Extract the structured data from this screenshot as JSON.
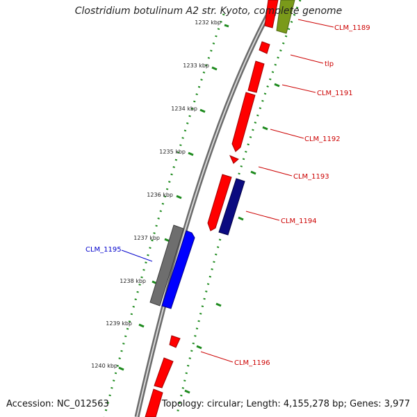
{
  "title": "Clostridium botulinum A2 str. Kyoto, complete genome",
  "footer": {
    "accession": "Accession: NC_012563",
    "summary": "Topology: circular; Length: 4,155,278 bp; Genes: 3,977"
  },
  "colors": {
    "backbone": "#8f8f8f",
    "tick_ring": "#1d8a1d",
    "gene_red": "#ff0000",
    "gene_olive": "#7a9a1a",
    "gene_navy": "#0b0b80",
    "gene_blue": "#0000ff",
    "gene_gray": "#6e6e6e",
    "label_red": "#cc0000",
    "label_blue": "#0000cc"
  },
  "kbp_ticks": [
    {
      "label": "1232 kbp"
    },
    {
      "label": "1233 kbp"
    },
    {
      "label": "1234 kbp"
    },
    {
      "label": "1235 kbp"
    },
    {
      "label": "1236 kbp"
    },
    {
      "label": "1237 kbp"
    },
    {
      "label": "1238 kbp"
    },
    {
      "label": "1239 kbp"
    },
    {
      "label": "1240 kbp"
    }
  ],
  "gene_labels": [
    {
      "text": "CLM_1189",
      "color": "red"
    },
    {
      "text": "tlp",
      "color": "red"
    },
    {
      "text": "CLM_1191",
      "color": "red"
    },
    {
      "text": "CLM_1192",
      "color": "red"
    },
    {
      "text": "CLM_1193",
      "color": "red"
    },
    {
      "text": "CLM_1194",
      "color": "red"
    },
    {
      "text": "CLM_1195",
      "color": "blue"
    },
    {
      "text": "CLM_1196",
      "color": "red"
    }
  ]
}
